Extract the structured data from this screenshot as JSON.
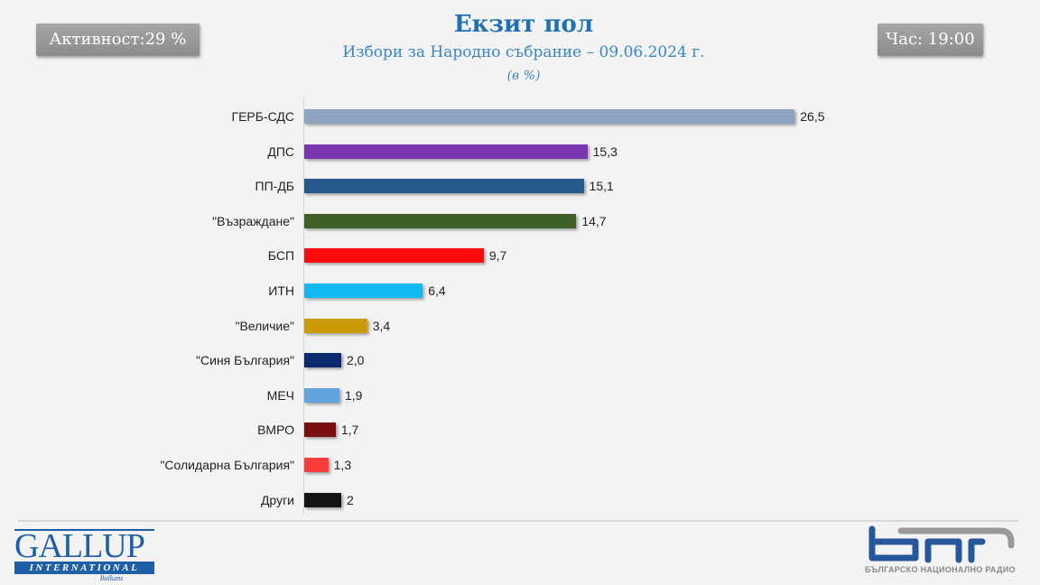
{
  "header": {
    "turnout_label": "Активност:29 %",
    "time_label": "Час: 19:00",
    "title": "Екзит пол",
    "subtitle": "Избори за Народно събрание – 09.06.2024  г.",
    "unit_note": "(в %)"
  },
  "chart_data": {
    "type": "bar",
    "orientation": "horizontal",
    "title": "Екзит пол",
    "subtitle": "Избори за Народно събрание – 09.06.2024 г.",
    "xlabel": "",
    "ylabel": "",
    "unit": "%",
    "categories": [
      "ГЕРБ-СДС",
      "ДПС",
      "ПП-ДБ",
      "\"Възраждане\"",
      "БСП",
      "ИТН",
      "\"Величие\"",
      "\"Синя България\"",
      "МЕЧ",
      "ВМРО",
      "\"Солидарна България\"",
      "Други"
    ],
    "values": [
      26.5,
      15.3,
      15.1,
      14.7,
      9.7,
      6.4,
      3.4,
      2.0,
      1.9,
      1.7,
      1.3,
      2
    ],
    "value_labels": [
      "26,5",
      "15,3",
      "15,1",
      "14,7",
      "9,7",
      "6,4",
      "3,4",
      "2,0",
      "1,9",
      "1,7",
      "1,3",
      "2"
    ],
    "colors": [
      "#8ea3c0",
      "#7b35b0",
      "#245a8c",
      "#3e6128",
      "#ff0a0a",
      "#12b8f0",
      "#cc9a06",
      "#0b2a6e",
      "#62a4de",
      "#7a0f12",
      "#ff3c3c",
      "#141414"
    ],
    "grid": false,
    "legend": null
  },
  "footer": {
    "gallup_word": "GALLUP",
    "gallup_band": "INTERNATIONAL",
    "gallup_small": "Balkans",
    "bnr_caption": "БЪЛГАРСКО НАЦИОНАЛНО РАДИО"
  }
}
